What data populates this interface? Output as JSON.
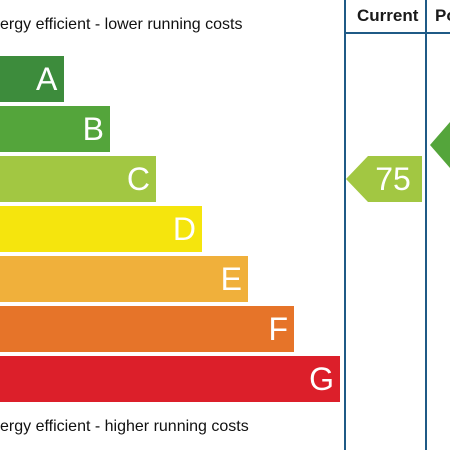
{
  "captions": {
    "top": "ergy efficient - lower running costs",
    "bottom": "ergy efficient - higher running costs"
  },
  "headers": {
    "current": "Current",
    "potential": "Po"
  },
  "bands": [
    {
      "letter": "A",
      "color": "#3d8c3c"
    },
    {
      "letter": "B",
      "color": "#54a53b"
    },
    {
      "letter": "C",
      "color": "#a2c742"
    },
    {
      "letter": "D",
      "color": "#f5e50d"
    },
    {
      "letter": "E",
      "color": "#f0b03b"
    },
    {
      "letter": "F",
      "color": "#e67429"
    },
    {
      "letter": "G",
      "color": "#dc1f2a"
    }
  ],
  "current_rating": {
    "value": "75",
    "band": "C",
    "color": "#a2c742"
  },
  "potential_rating": {
    "band": "B",
    "color": "#54a53b"
  },
  "border_color": "#1f5a86"
}
